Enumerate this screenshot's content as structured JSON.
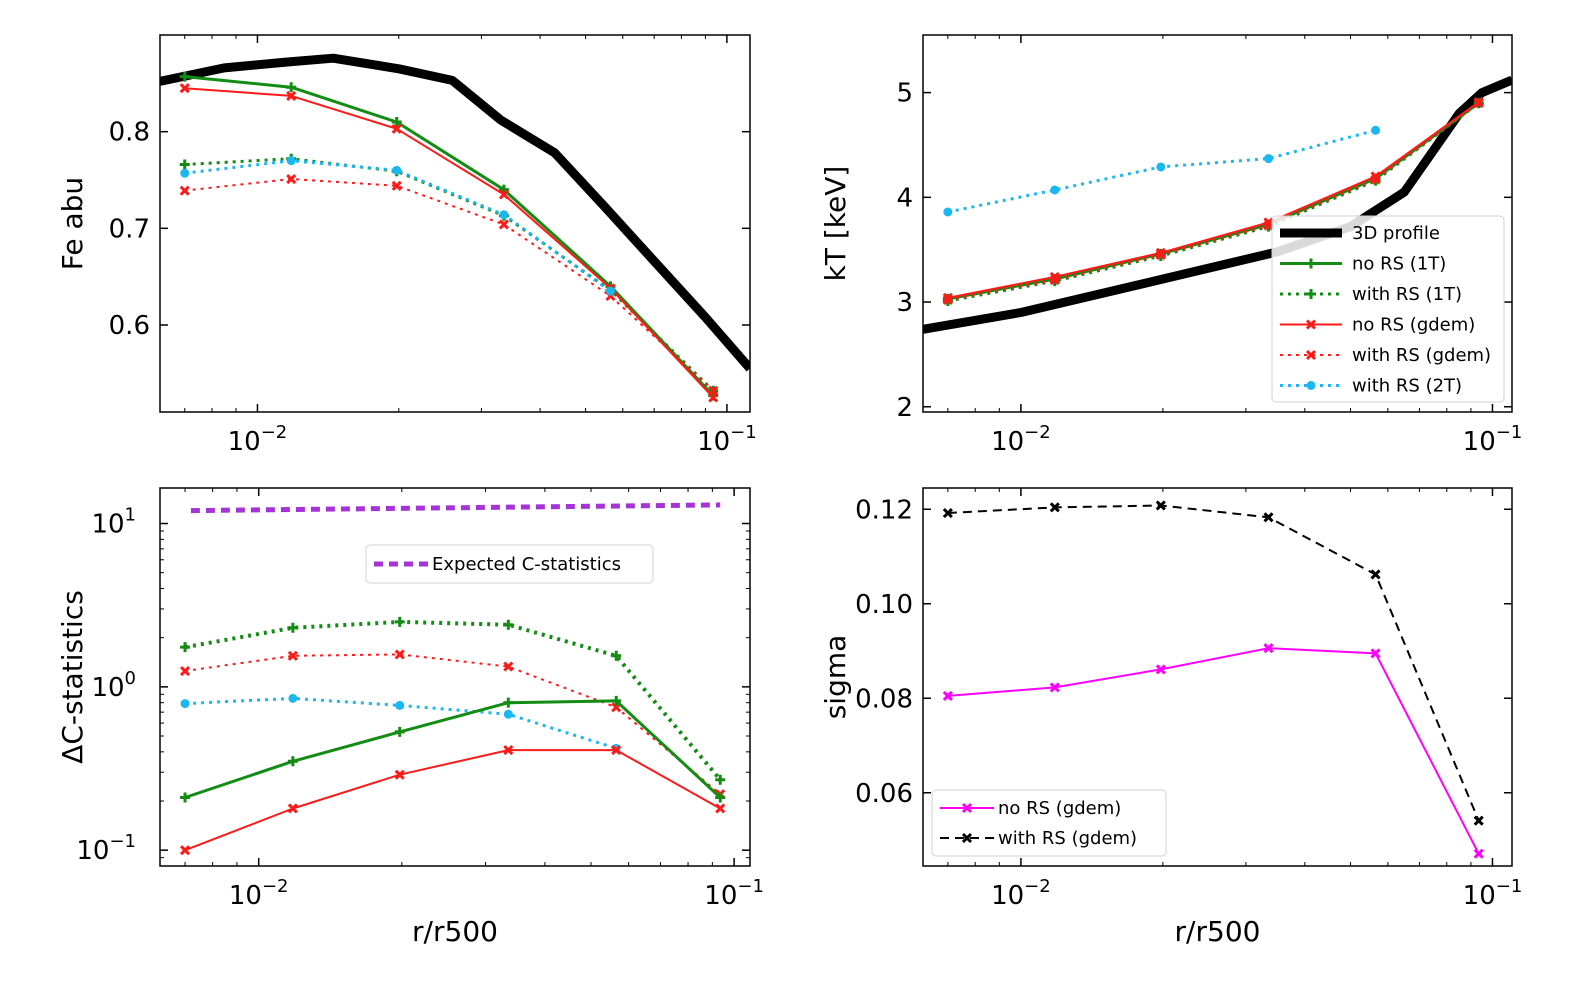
{
  "chart_data": [
    {
      "id": "fe",
      "type": "line",
      "xscale": "log",
      "yscale": "linear",
      "xlim": [
        0.0062,
        0.112
      ],
      "ylim": [
        0.51,
        0.9
      ],
      "xlabel": "",
      "ylabel": "Fe abu",
      "xticks": [
        {
          "value": 0.01,
          "base": "10",
          "exp": "−2"
        },
        {
          "value": 0.1,
          "base": "10",
          "exp": "−1"
        }
      ],
      "yticks": [
        {
          "value": 0.6,
          "label": "0.6"
        },
        {
          "value": 0.7,
          "label": "0.7"
        },
        {
          "value": 0.8,
          "label": "0.8"
        }
      ],
      "series": [
        {
          "name": "3D profile",
          "color": "#000000",
          "style": "solid",
          "width": 9,
          "marker": "none",
          "x": [
            0.0062,
            0.0085,
            0.0115,
            0.0145,
            0.02,
            0.026,
            0.033,
            0.043,
            0.055,
            0.07,
            0.09,
            0.112
          ],
          "y": [
            0.852,
            0.866,
            0.872,
            0.876,
            0.865,
            0.853,
            0.812,
            0.778,
            0.722,
            0.666,
            0.608,
            0.555
          ]
        },
        {
          "name": "no RS (1T)",
          "color": "#138c13",
          "style": "solid",
          "width": 3,
          "marker": "plus",
          "x": [
            0.007,
            0.0118,
            0.0198,
            0.0335,
            0.0565,
            0.0935
          ],
          "y": [
            0.857,
            0.846,
            0.81,
            0.74,
            0.64,
            0.527
          ]
        },
        {
          "name": "with RS (1T)",
          "color": "#138c13",
          "style": "dotted",
          "width": 3,
          "marker": "plus",
          "x": [
            0.007,
            0.0118,
            0.0198,
            0.0335,
            0.0565,
            0.0935
          ],
          "y": [
            0.766,
            0.772,
            0.759,
            0.713,
            0.636,
            0.532
          ]
        },
        {
          "name": "no RS (gdem)",
          "color": "#ff1a1a",
          "style": "solid",
          "width": 2,
          "marker": "x",
          "x": [
            0.007,
            0.0118,
            0.0198,
            0.0335,
            0.0565,
            0.0935
          ],
          "y": [
            0.845,
            0.837,
            0.803,
            0.735,
            0.638,
            0.525
          ]
        },
        {
          "name": "with RS (gdem)",
          "color": "#ff1a1a",
          "style": "dotted",
          "width": 2,
          "marker": "x",
          "x": [
            0.007,
            0.0118,
            0.0198,
            0.0335,
            0.0565,
            0.0935
          ],
          "y": [
            0.739,
            0.751,
            0.744,
            0.704,
            0.63,
            0.532
          ]
        },
        {
          "name": "with RS (2T)",
          "color": "#1ab8f0",
          "style": "dotted",
          "width": 3,
          "marker": "circle",
          "x": [
            0.007,
            0.0118,
            0.0198,
            0.0335,
            0.0565
          ],
          "y": [
            0.757,
            0.77,
            0.76,
            0.714,
            0.635
          ]
        }
      ],
      "legend": null
    },
    {
      "id": "kt",
      "type": "line",
      "xscale": "log",
      "yscale": "linear",
      "xlim": [
        0.0062,
        0.11
      ],
      "ylim": [
        1.95,
        5.55
      ],
      "xlabel": "",
      "ylabel": "kT [keV]",
      "xticks": [
        {
          "value": 0.01,
          "base": "10",
          "exp": "−2"
        },
        {
          "value": 0.1,
          "base": "10",
          "exp": "−1"
        }
      ],
      "yticks": [
        {
          "value": 2,
          "label": "2"
        },
        {
          "value": 3,
          "label": "3"
        },
        {
          "value": 4,
          "label": "4"
        },
        {
          "value": 5,
          "label": "5"
        }
      ],
      "series": [
        {
          "name": "3D profile",
          "color": "#000000",
          "style": "solid",
          "width": 9,
          "marker": "none",
          "x": [
            0.0062,
            0.01,
            0.02,
            0.035,
            0.05,
            0.065,
            0.075,
            0.085,
            0.095,
            0.11
          ],
          "y": [
            2.74,
            2.9,
            3.22,
            3.48,
            3.72,
            4.05,
            4.45,
            4.8,
            5.0,
            5.12
          ]
        },
        {
          "name": "no RS (1T)",
          "color": "#138c13",
          "style": "solid",
          "width": 3,
          "marker": "plus",
          "x": [
            0.007,
            0.0118,
            0.0198,
            0.0335,
            0.0565,
            0.0935
          ],
          "y": [
            3.03,
            3.22,
            3.46,
            3.74,
            4.18,
            4.9
          ]
        },
        {
          "name": "with RS (1T)",
          "color": "#138c13",
          "style": "dotted",
          "width": 3,
          "marker": "plus",
          "x": [
            0.007,
            0.0118,
            0.0198,
            0.0335,
            0.0565,
            0.0935
          ],
          "y": [
            3.01,
            3.2,
            3.44,
            3.72,
            4.16,
            4.9
          ]
        },
        {
          "name": "no RS (gdem)",
          "color": "#ff1a1a",
          "style": "solid",
          "width": 2,
          "marker": "x",
          "x": [
            0.007,
            0.0118,
            0.0198,
            0.0335,
            0.0565,
            0.0935
          ],
          "y": [
            3.04,
            3.24,
            3.47,
            3.76,
            4.2,
            4.91
          ]
        },
        {
          "name": "with RS (gdem)",
          "color": "#ff1a1a",
          "style": "dotted",
          "width": 2,
          "marker": "x",
          "x": [
            0.007,
            0.0118,
            0.0198,
            0.0335,
            0.0565,
            0.0935
          ],
          "y": [
            3.02,
            3.21,
            3.45,
            3.73,
            4.17,
            4.9
          ]
        },
        {
          "name": "with RS (2T)",
          "color": "#1ab8f0",
          "style": "dotted",
          "width": 3,
          "marker": "circle",
          "x": [
            0.007,
            0.0118,
            0.0198,
            0.0335,
            0.0565
          ],
          "y": [
            3.86,
            4.07,
            4.29,
            4.37,
            4.64
          ]
        }
      ],
      "legend": {
        "placement": "lower-right",
        "entries": [
          "3D profile",
          "no RS (1T)",
          "with RS (1T)",
          "no RS (gdem)",
          "with RS (gdem)",
          "with RS (2T)"
        ]
      }
    },
    {
      "id": "dc",
      "type": "line",
      "xscale": "log",
      "yscale": "log",
      "xlim": [
        0.0062,
        0.108
      ],
      "ylim": [
        0.08,
        16.5
      ],
      "xlabel": "r/r500",
      "ylabel": "ΔC-statistics",
      "xticks": [
        {
          "value": 0.01,
          "base": "10",
          "exp": "−2"
        },
        {
          "value": 0.1,
          "base": "10",
          "exp": "−1"
        }
      ],
      "yticks": [
        {
          "value": 0.1,
          "base": "10",
          "exp": "−1"
        },
        {
          "value": 1,
          "base": "10",
          "exp": "0"
        },
        {
          "value": 10,
          "base": "10",
          "exp": "1"
        }
      ],
      "series": [
        {
          "name": "Expected C-statistics",
          "color": "#a633d6",
          "style": "dashed",
          "width": 5,
          "marker": "none",
          "x": [
            0.0072,
            0.0935
          ],
          "y": [
            12.0,
            13.0
          ]
        },
        {
          "name": "with RS (1T)",
          "color": "#138c13",
          "style": "dotted",
          "width": 4,
          "marker": "plus",
          "x": [
            0.007,
            0.0118,
            0.0198,
            0.0335,
            0.0565,
            0.0935
          ],
          "y": [
            1.75,
            2.3,
            2.5,
            2.4,
            1.55,
            0.27
          ]
        },
        {
          "name": "with RS (gdem)",
          "color": "#ff1a1a",
          "style": "dotted",
          "width": 2,
          "marker": "x",
          "x": [
            0.007,
            0.0118,
            0.0198,
            0.0335,
            0.0565,
            0.0935
          ],
          "y": [
            1.25,
            1.55,
            1.58,
            1.33,
            0.75,
            0.22
          ]
        },
        {
          "name": "with RS (2T)",
          "color": "#1ab8f0",
          "style": "dotted",
          "width": 3,
          "marker": "circle",
          "x": [
            0.007,
            0.0118,
            0.0198,
            0.0335,
            0.0565
          ],
          "y": [
            0.79,
            0.85,
            0.77,
            0.68,
            0.42
          ]
        },
        {
          "name": "no RS (1T)",
          "color": "#138c13",
          "style": "solid",
          "width": 3,
          "marker": "plus",
          "x": [
            0.007,
            0.0118,
            0.0198,
            0.0335,
            0.0565,
            0.0935
          ],
          "y": [
            0.21,
            0.35,
            0.53,
            0.8,
            0.82,
            0.21
          ]
        },
        {
          "name": "no RS (gdem)",
          "color": "#ff1a1a",
          "style": "solid",
          "width": 2,
          "marker": "x",
          "x": [
            0.007,
            0.0118,
            0.0198,
            0.0335,
            0.0565,
            0.0935
          ],
          "y": [
            0.1,
            0.18,
            0.29,
            0.41,
            0.41,
            0.18
          ]
        }
      ],
      "legend": {
        "placement": "upper-center",
        "entries": [
          "Expected C-statistics"
        ]
      }
    },
    {
      "id": "sigma",
      "type": "line",
      "xscale": "log",
      "yscale": "linear",
      "xlim": [
        0.0062,
        0.11
      ],
      "ylim": [
        0.0445,
        0.1245
      ],
      "xlabel": "r/r500",
      "ylabel": "sigma",
      "xticks": [
        {
          "value": 0.01,
          "base": "10",
          "exp": "−2"
        },
        {
          "value": 0.1,
          "base": "10",
          "exp": "−1"
        }
      ],
      "yticks": [
        {
          "value": 0.06,
          "label": "0.06"
        },
        {
          "value": 0.08,
          "label": "0.08"
        },
        {
          "value": 0.1,
          "label": "0.10"
        },
        {
          "value": 0.12,
          "label": "0.12"
        }
      ],
      "series": [
        {
          "name": "no RS (gdem)",
          "color": "#ff00ff",
          "style": "solid",
          "width": 2,
          "marker": "x",
          "x": [
            0.007,
            0.0118,
            0.0198,
            0.0335,
            0.0565,
            0.0935
          ],
          "y": [
            0.0805,
            0.0823,
            0.0861,
            0.0906,
            0.0895,
            0.0471
          ]
        },
        {
          "name": "with RS (gdem)",
          "color": "#000000",
          "style": "dashed",
          "width": 2,
          "marker": "x",
          "x": [
            0.007,
            0.0118,
            0.0198,
            0.0335,
            0.0565,
            0.0935
          ],
          "y": [
            0.1192,
            0.1204,
            0.1208,
            0.1183,
            0.1062,
            0.0541
          ]
        }
      ],
      "legend": {
        "placement": "lower-left",
        "entries": [
          "no RS (gdem)",
          "with RS (gdem)"
        ]
      }
    }
  ]
}
